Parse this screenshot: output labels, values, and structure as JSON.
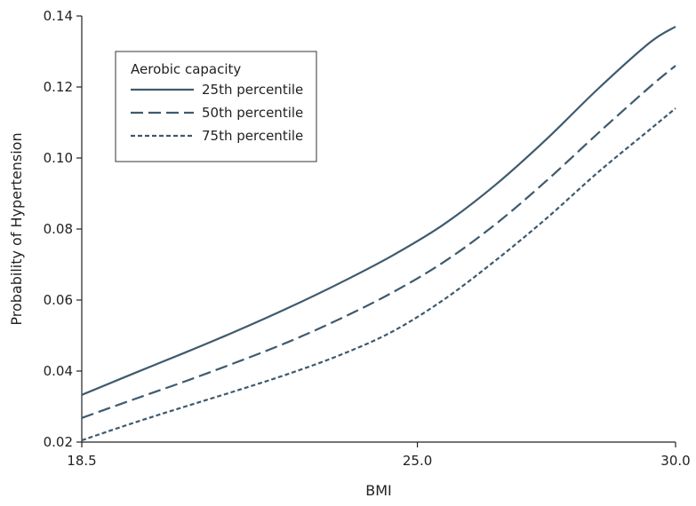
{
  "chart_data": {
    "type": "line",
    "xlabel": "BMI",
    "ylabel": "Probability of Hypertension",
    "xlim": [
      18.5,
      30.0
    ],
    "ylim": [
      0.02,
      0.14
    ],
    "x_ticks": [
      "18.5",
      "25.0",
      "30.0"
    ],
    "y_ticks": [
      "0.02",
      "0.04",
      "0.06",
      "0.08",
      "0.10",
      "0.12",
      "0.14"
    ],
    "grid": false,
    "legend": {
      "title": "Aerobic capacity",
      "placement": "top-left"
    },
    "x": [
      18.5,
      19.5,
      20.5,
      21.5,
      22.5,
      23.5,
      24.5,
      25.5,
      26.5,
      27.5,
      28.5,
      29.5,
      30.0
    ],
    "series": [
      {
        "name": "25th percentile",
        "style": "solid",
        "values": [
          0.0333,
          0.0393,
          0.0452,
          0.0513,
          0.0578,
          0.0648,
          0.0724,
          0.0812,
          0.0923,
          0.1053,
          0.1195,
          0.1325,
          0.137
        ]
      },
      {
        "name": "50th percentile",
        "style": "dashed",
        "values": [
          0.0268,
          0.032,
          0.0371,
          0.0425,
          0.0482,
          0.0547,
          0.062,
          0.0706,
          0.0812,
          0.0936,
          0.107,
          0.12,
          0.126
        ]
      },
      {
        "name": "75th percentile",
        "style": "dotted",
        "values": [
          0.0205,
          0.0254,
          0.03,
          0.0345,
          0.0392,
          0.0445,
          0.051,
          0.06,
          0.071,
          0.083,
          0.096,
          0.108,
          0.114
        ]
      }
    ],
    "colors": {
      "line": "#3e5a6e",
      "axis": "#222222"
    }
  }
}
